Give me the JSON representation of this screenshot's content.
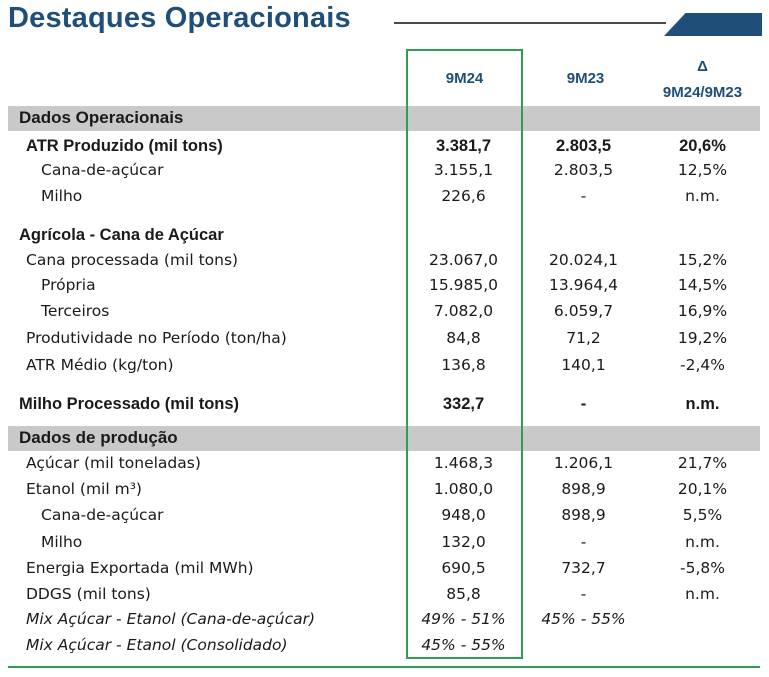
{
  "title": "Destaques Operacionais",
  "columns": {
    "col1": "9M24",
    "col2": "9M23",
    "delta_symbol": "Δ",
    "delta_label": "9M24/9M23"
  },
  "sections": {
    "operacionais": "Dados Operacionais",
    "producao": "Dados de produção"
  },
  "rows": [
    {
      "label": "ATR Produzido (mil tons)",
      "v1": "3.381,7",
      "v2": "2.803,5",
      "v3": "20,6%"
    },
    {
      "label": "Cana-de-açúcar",
      "v1": "3.155,1",
      "v2": "2.803,5",
      "v3": "12,5%"
    },
    {
      "label": "Milho",
      "v1": "226,6",
      "v2": "-",
      "v3": "n.m."
    },
    {
      "label": "Agrícola - Cana de Açúcar",
      "v1": "",
      "v2": "",
      "v3": ""
    },
    {
      "label": "Cana processada (mil tons)",
      "v1": "23.067,0",
      "v2": "20.024,1",
      "v3": "15,2%"
    },
    {
      "label": "Própria",
      "v1": "15.985,0",
      "v2": "13.964,4",
      "v3": "14,5%"
    },
    {
      "label": "Terceiros",
      "v1": "7.082,0",
      "v2": "6.059,7",
      "v3": "16,9%"
    },
    {
      "label": "Produtividade no Período (ton/ha)",
      "v1": "84,8",
      "v2": "71,2",
      "v3": "19,2%"
    },
    {
      "label": "ATR Médio (kg/ton)",
      "v1": "136,8",
      "v2": "140,1",
      "v3": "-2,4%"
    },
    {
      "label": "Milho Processado (mil tons)",
      "v1": "332,7",
      "v2": "-",
      "v3": "n.m."
    },
    {
      "label": "Açúcar (mil toneladas)",
      "v1": "1.468,3",
      "v2": "1.206,1",
      "v3": "21,7%"
    },
    {
      "label": "Etanol (mil m³)",
      "v1": "1.080,0",
      "v2": "898,9",
      "v3": "20,1%"
    },
    {
      "label": "Cana-de-açúcar",
      "v1": "948,0",
      "v2": "898,9",
      "v3": "5,5%"
    },
    {
      "label": "Milho",
      "v1": "132,0",
      "v2": "-",
      "v3": "n.m."
    },
    {
      "label": "Energia Exportada (mil MWh)",
      "v1": "690,5",
      "v2": "732,7",
      "v3": "-5,8%"
    },
    {
      "label": "DDGS (mil tons)",
      "v1": "85,8",
      "v2": "-",
      "v3": "n.m."
    },
    {
      "label": "Mix Açúcar - Etanol (Cana-de-açúcar)",
      "v1": "49% - 51%",
      "v2": "45% - 55%",
      "v3": ""
    },
    {
      "label": "Mix Açúcar - Etanol (Consolidado)",
      "v1": "45% - 55%",
      "v2": "",
      "v3": ""
    }
  ]
}
